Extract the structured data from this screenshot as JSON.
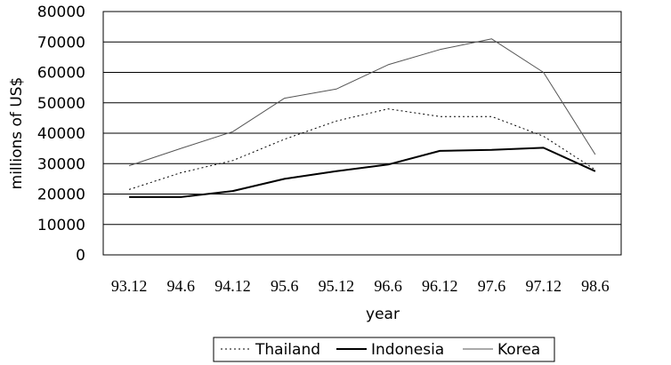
{
  "chart_data": {
    "type": "line",
    "title": "",
    "xlabel": "year",
    "ylabel": "millions of US$",
    "categories": [
      "93.12",
      "94.6",
      "94.12",
      "95.6",
      "95.12",
      "96.6",
      "96.12",
      "97.6",
      "97.12",
      "98.6"
    ],
    "ylim": [
      0,
      80000
    ],
    "yticks": [
      "0",
      "10000",
      "20000",
      "30000",
      "40000",
      "50000",
      "60000",
      "70000",
      "80000"
    ],
    "grid": true,
    "legend_position": "bottom",
    "series": [
      {
        "name": "Thailand",
        "style": "dotted",
        "color": "#000000",
        "values": [
          21500,
          27000,
          31000,
          38000,
          44000,
          48000,
          45500,
          45500,
          39000,
          28000
        ]
      },
      {
        "name": "Indonesia",
        "style": "solid-thick",
        "color": "#000000",
        "values": [
          19000,
          19000,
          21000,
          25000,
          27500,
          29700,
          34200,
          34500,
          35200,
          27500
        ]
      },
      {
        "name": "Korea",
        "style": "solid-thin",
        "color": "#555555",
        "values": [
          29300,
          35000,
          40500,
          51500,
          54500,
          62500,
          67500,
          71000,
          60000,
          33000
        ]
      }
    ]
  }
}
